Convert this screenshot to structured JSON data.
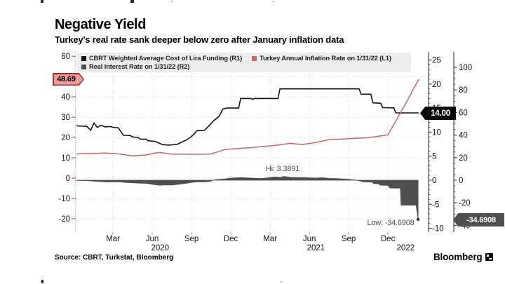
{
  "page": {
    "title": "Negative Yield",
    "subtitle": "Turkey's real rate sank deeper below zero after January inflation data",
    "source": "Source: CBRT, Turkstat, Bloomberg",
    "brand": "Bloomberg"
  },
  "legend": {
    "items": [
      {
        "label": "CBRT Weighted Average Cost of Lira Funding (R1)",
        "color": "#141414"
      },
      {
        "label": "Turkey Annual Inflation Rate on 1/31/22 (L1)",
        "color": "#c4686a"
      },
      {
        "label": "Real Interest Rate on 1/31/22 (R2)",
        "color": "#4f4f4f"
      }
    ]
  },
  "callouts": {
    "inflation_last": {
      "text": "48.69",
      "fill": "#ec9a9a",
      "border": "#9e2e2e"
    },
    "cbrt_last": {
      "text": "14.00",
      "fill": "#0a0a0a"
    },
    "real_last": {
      "text": "-34.6908",
      "fill": "#4f4f4f"
    }
  },
  "annotations": {
    "hi": "Hi: 3.3891",
    "low": "Low: -34.6908"
  },
  "chart_data": {
    "type": "line",
    "title": "Negative Yield",
    "x_unit": "months since Jan 1 2020",
    "x_axis": {
      "tick_labels": [
        "Mar",
        "Jun",
        "Sep",
        "Dec",
        "Mar",
        "Jun",
        "Sep",
        "Dec"
      ],
      "tick_t": [
        2,
        5,
        8,
        11,
        14,
        17,
        20,
        23
      ],
      "year_labels": [
        {
          "label": "2020",
          "t": 5.6
        },
        {
          "label": "2021",
          "t": 17.5
        },
        {
          "label": "2022",
          "t": 24.35
        }
      ]
    },
    "axes": {
      "L1": {
        "side": "left",
        "range": [
          -20,
          60
        ],
        "ticks": [
          60,
          50,
          40,
          30,
          20,
          10,
          0,
          -10,
          -20
        ],
        "color": "#c06060"
      },
      "R1": {
        "side": "right",
        "range": [
          -10,
          25
        ],
        "ticks": [
          25,
          20,
          15,
          10,
          5,
          0,
          -5,
          -10
        ],
        "minor_step": 1,
        "color": "#444444"
      },
      "R2": {
        "side": "right",
        "range": [
          -40,
          100
        ],
        "ticks": [
          100,
          80,
          60,
          40,
          20,
          0,
          -20,
          -40
        ],
        "minor_step": 5,
        "color": "#444444"
      }
    },
    "gridlines_L1": [
      50,
      40,
      30,
      20,
      10,
      0,
      -10,
      -20
    ],
    "series": [
      {
        "name": "CBRT Weighted Average Cost of Lira Funding",
        "axis": "R1",
        "type": "line",
        "color": "#141414",
        "last_value": 14.0,
        "points": [
          [
            -0.8,
            11.3
          ],
          [
            0,
            11.2
          ],
          [
            0.3,
            10.4
          ],
          [
            0.55,
            11.9
          ],
          [
            0.8,
            11.0
          ],
          [
            1.1,
            11.4
          ],
          [
            1.4,
            11.1
          ],
          [
            1.8,
            11.15
          ],
          [
            2.1,
            10.95
          ],
          [
            2.4,
            10.9
          ],
          [
            2.6,
            10.15
          ],
          [
            2.8,
            9.35
          ],
          [
            3.3,
            9.3
          ],
          [
            3.5,
            9.0
          ],
          [
            3.9,
            8.9
          ],
          [
            4.1,
            8.55
          ],
          [
            4.5,
            8.55
          ],
          [
            4.7,
            8.2
          ],
          [
            5.2,
            8.1
          ],
          [
            5.5,
            7.75
          ],
          [
            5.8,
            7.4
          ],
          [
            6.3,
            7.3
          ],
          [
            6.9,
            7.45
          ],
          [
            7.3,
            8.0
          ],
          [
            7.6,
            8.35
          ],
          [
            7.9,
            8.9
          ],
          [
            8.2,
            9.6
          ],
          [
            8.4,
            10.3
          ],
          [
            9.0,
            10.4
          ],
          [
            9.4,
            11.5
          ],
          [
            9.7,
            12.4
          ],
          [
            10.1,
            13.3
          ],
          [
            10.4,
            14.8
          ],
          [
            10.7,
            15.0
          ],
          [
            11.6,
            15.0
          ],
          [
            11.75,
            17.0
          ],
          [
            12.55,
            17.0
          ],
          [
            12.65,
            16.8
          ],
          [
            12.8,
            17.0
          ],
          [
            14.6,
            17.0
          ],
          [
            14.75,
            19.0
          ],
          [
            20.8,
            19.0
          ],
          [
            20.95,
            17.9
          ],
          [
            21.7,
            17.9
          ],
          [
            21.85,
            16.1
          ],
          [
            22.45,
            16.0
          ],
          [
            22.6,
            15.1
          ],
          [
            23.45,
            15.05
          ],
          [
            23.6,
            14.0
          ],
          [
            25.35,
            14.0
          ]
        ]
      },
      {
        "name": "Turkey Annual Inflation Rate on 1/31/22",
        "axis": "L1",
        "type": "line",
        "color": "#c4686a",
        "last_value": 48.69,
        "points": [
          [
            -0.8,
            11.9
          ],
          [
            0.5,
            12.15
          ],
          [
            1.5,
            12.37
          ],
          [
            2.5,
            11.86
          ],
          [
            3.5,
            10.94
          ],
          [
            4.5,
            11.39
          ],
          [
            5.5,
            12.62
          ],
          [
            6.5,
            11.76
          ],
          [
            7.5,
            11.77
          ],
          [
            8.5,
            11.75
          ],
          [
            9.5,
            11.89
          ],
          [
            10.5,
            14.03
          ],
          [
            11.5,
            14.6
          ],
          [
            12.5,
            14.97
          ],
          [
            13.5,
            15.61
          ],
          [
            14.5,
            16.19
          ],
          [
            15.5,
            17.14
          ],
          [
            16.5,
            16.59
          ],
          [
            17.5,
            17.53
          ],
          [
            18.5,
            18.95
          ],
          [
            19.5,
            19.25
          ],
          [
            20.5,
            19.58
          ],
          [
            21.5,
            19.89
          ],
          [
            23.0,
            21.31
          ],
          [
            24.3,
            36.08
          ],
          [
            25.35,
            48.69
          ]
        ]
      },
      {
        "name": "Real Interest Rate on 1/31/22",
        "axis": "R2",
        "type": "area",
        "color": "#4f4f4f",
        "hi": {
          "t": 15.1,
          "v": 3.3891
        },
        "low": {
          "t": 25.3,
          "v": -34.6908
        },
        "points": [
          [
            -0.8,
            -0.2
          ],
          [
            0,
            -0.4
          ],
          [
            0.5,
            -0.9
          ],
          [
            1,
            -1.2
          ],
          [
            1.5,
            -1.6
          ],
          [
            2,
            -1.5
          ],
          [
            2.5,
            -1.4
          ],
          [
            3,
            -2.0
          ],
          [
            3.5,
            -2.3
          ],
          [
            4,
            -2.6
          ],
          [
            4.5,
            -2.8
          ],
          [
            5,
            -3.6
          ],
          [
            5.5,
            -4.4
          ],
          [
            6,
            -4.2
          ],
          [
            6.5,
            -4.3
          ],
          [
            7,
            -3.6
          ],
          [
            7.5,
            -2.9
          ],
          [
            8,
            -1.9
          ],
          [
            8.5,
            -1.4
          ],
          [
            9,
            -1.5
          ],
          [
            9.4,
            -1.2
          ],
          [
            9.7,
            0.3
          ],
          [
            10.2,
            0.8
          ],
          [
            10.5,
            1.0
          ],
          [
            10.8,
            1.6
          ],
          [
            11.3,
            2.2
          ],
          [
            11.8,
            2.4
          ],
          [
            12.3,
            2.1
          ],
          [
            12.8,
            1.8
          ],
          [
            13.3,
            1.4
          ],
          [
            13.8,
            2.2
          ],
          [
            14.3,
            2.9
          ],
          [
            14.8,
            2.6
          ],
          [
            15.1,
            3.3891
          ],
          [
            15.5,
            2.6
          ],
          [
            16,
            2.4
          ],
          [
            16.5,
            2.5
          ],
          [
            17,
            2.2
          ],
          [
            17.5,
            1.9
          ],
          [
            18,
            2.3
          ],
          [
            18.5,
            1.6
          ],
          [
            19,
            1.4
          ],
          [
            19.5,
            1.1
          ],
          [
            20,
            0.9
          ],
          [
            20.5,
            0.2
          ],
          [
            20.8,
            -0.4
          ],
          [
            21.1,
            -1.5
          ],
          [
            21.8,
            -1.6
          ],
          [
            21.9,
            -3.0
          ],
          [
            22.3,
            -3.2
          ],
          [
            22.4,
            -4.4
          ],
          [
            23.0,
            -4.6
          ],
          [
            23.15,
            -6.9
          ],
          [
            23.95,
            -7.0
          ],
          [
            24.0,
            -22.1
          ],
          [
            25.15,
            -22.2
          ],
          [
            25.3,
            -34.6908
          ]
        ]
      }
    ]
  }
}
